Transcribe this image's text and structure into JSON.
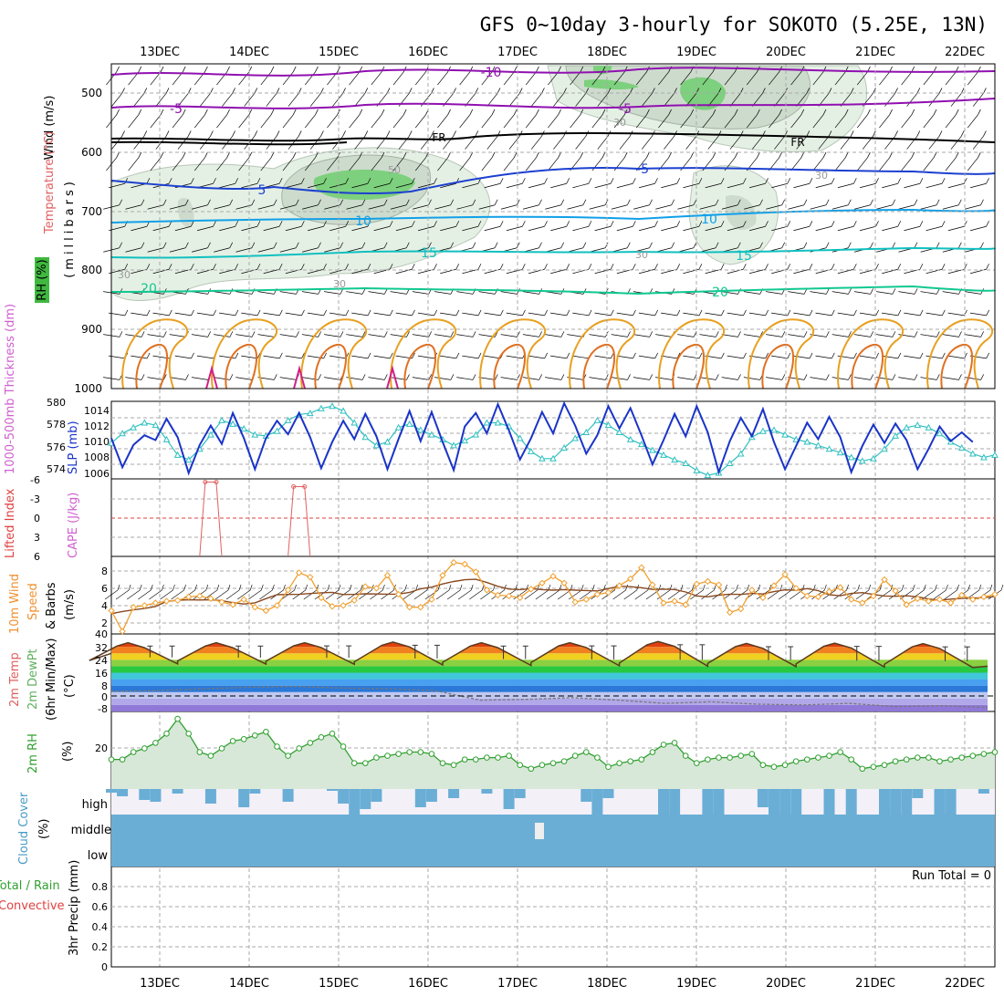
{
  "title": "GFS 0~10day 3-hourly for SOKOTO (5.25E, 13N)",
  "dates": [
    "13DEC",
    "14DEC",
    "15DEC",
    "16DEC",
    "17DEC",
    "18DEC",
    "19DEC",
    "20DEC",
    "21DEC",
    "22DEC"
  ],
  "run_total": "Run Total = 0",
  "panels": {
    "upper": {
      "ylabel_wind": "Wind (m/s)",
      "ylabel_temp": "Temperature (°C)",
      "ylabel_rh": "RH (%)",
      "ylabel_mb": "(millibars)",
      "yticks": [
        "500",
        "600",
        "700",
        "800",
        "900",
        "1000"
      ]
    },
    "sfc": {
      "ylabel_thick": "1000-500mb Thickness (dm)",
      "ylabel_slp": "SLP (mb)",
      "yticks_left": [
        "580",
        "578",
        "576",
        "574"
      ],
      "yticks_right": [
        "1014",
        "1012",
        "1010",
        "1008",
        "1006"
      ]
    },
    "cape": {
      "ylabel_li": "Lifted Index",
      "ylabel_cape": "CAPE (J/kg)",
      "yticks": [
        "-6",
        "-3",
        "0",
        "3",
        "6"
      ]
    },
    "wind10": {
      "ylabel_a": "10m Wind",
      "ylabel_b": "Speed",
      "ylabel_c": "& Barbs",
      "ylabel_d": "(m/s)",
      "yticks": [
        "8",
        "6",
        "4",
        "2"
      ]
    },
    "temp": {
      "ylabel_a": "2m Temp",
      "ylabel_b": "2m DewPt",
      "ylabel_c": "(6hr Min/Max)",
      "ylabel_d": "(°C)",
      "yticks": [
        "40",
        "32",
        "24",
        "16",
        "8",
        "0",
        "-8"
      ]
    },
    "rh": {
      "ylabel_a": "2m RH",
      "ylabel_b": "(%)",
      "yticks": [
        "20"
      ]
    },
    "cloud": {
      "ylabel_a": "Cloud Cover",
      "ylabel_b": "(%)",
      "levels": [
        "high",
        "middle",
        "low"
      ]
    },
    "precip": {
      "ylabel_a": "Total / Rain",
      "ylabel_b": "Convective",
      "ylabel_c": "3hr Precip (mm)",
      "yticks": [
        "0.8",
        "0.6",
        "0.4",
        "0.2",
        "0"
      ]
    }
  },
  "contour_labels": {
    "temp": [
      "-10",
      "-5",
      "-5",
      "FR",
      "FR",
      "-5",
      "5",
      "-5",
      "10",
      "10",
      "15",
      "15",
      "20",
      "20"
    ],
    "rh": [
      "30",
      "50",
      "30",
      "30",
      "30",
      "30"
    ]
  },
  "colors": {
    "temp_minus10": "#9010b0",
    "temp_minus5": "#9010b0",
    "freezing": "#000000",
    "temp_5": "#1c40d0",
    "temp_10": "#10a0e8",
    "temp_15": "#10c0c0",
    "temp_20": "#10c890",
    "low_orange": "#e8a020",
    "rh_dark": "#c0d0c0",
    "rh_green": "#60c860",
    "slp": "#1a34c8",
    "thickness": "#30c0c0",
    "wind_speed": "#f0a030",
    "rh2m": "#30a030",
    "cloud": "#6aaed6",
    "cloud_bg": "#f4f0f8"
  },
  "chart_data": {
    "type": "meteogram",
    "x_unit": "3-hourly steps from 12DEC 12Z",
    "x_range": [
      0,
      80
    ],
    "slp": {
      "name": "SLP (mb)",
      "ylim": [
        1006,
        1014
      ],
      "values": [
        1010.2,
        1007.2,
        1009.5,
        1010.5,
        1010.0,
        1012.2,
        1010.3,
        1006.6,
        1009.5,
        1011.5,
        1009.6,
        1012.8,
        1010.2,
        1007.0,
        1010.2,
        1012.0,
        1010.6,
        1012.8,
        1010.3,
        1007.1,
        1009.8,
        1012.0,
        1010.1,
        1012.7,
        1010.4,
        1007.0,
        1010.1,
        1013.0,
        1009.9,
        1012.9,
        1009.8,
        1006.9,
        1011.4,
        1012.8,
        1010.7,
        1013.7,
        1011.0,
        1008.0,
        1010.2,
        1012.9,
        1010.7,
        1013.8,
        1011.5,
        1008.6,
        1010.5,
        1013.5,
        1011.2,
        1013.3,
        1010.5,
        1007.5,
        1010.0,
        1012.7,
        1010.4,
        1013.5,
        1010.8,
        1006.7,
        1009.9,
        1012.3,
        1010.4,
        1013.2,
        1009.8,
        1007.0,
        1009.4,
        1011.8,
        1010.1,
        1012.4,
        1010.3,
        1006.7,
        1009.4,
        1011.6,
        1009.7,
        1011.7,
        1010.0,
        1007.0,
        1009.1,
        1011.4,
        1009.9,
        1010.8,
        1009.8
      ]
    },
    "thickness": {
      "name": "1000-500mb Thickness (dm)",
      "ylim": [
        573.5,
        580
      ],
      "values": [
        576.5,
        577.3,
        577.8,
        578.2,
        578.0,
        576.8,
        575.5,
        575.1,
        576.0,
        577.2,
        578.4,
        578.1,
        577.7,
        577.2,
        577.1,
        577.5,
        578.4,
        578.9,
        579.0,
        579.4,
        579.6,
        579.2,
        578.2,
        577.0,
        576.3,
        576.6,
        577.8,
        578.1,
        577.6,
        577.2,
        576.8,
        576.3,
        576.7,
        577.2,
        578.2,
        578.2,
        577.9,
        576.9,
        575.8,
        575.2,
        575.2,
        576.1,
        576.9,
        577.4,
        578.4,
        578.0,
        577.4,
        576.8,
        576.4,
        575.9,
        575.5,
        575.1,
        574.8,
        574.2,
        573.8,
        574.0,
        574.8,
        575.6,
        577.0,
        577.5,
        577.6,
        577.2,
        576.8,
        576.6,
        576.3,
        576.0,
        575.7,
        575.3,
        575.0,
        575.2,
        576.0,
        577.1,
        577.8,
        578.0,
        577.8,
        577.3,
        576.6,
        576.1,
        575.6,
        575.3,
        575.5
      ]
    },
    "wind10m_speed": {
      "name": "10m Wind Speed (m/s)",
      "ylim": [
        0.5,
        9.5
      ],
      "values": [
        3.2,
        0.8,
        3.6,
        3.8,
        4.1,
        4.3,
        4.4,
        4.8,
        4.9,
        4.6,
        4.2,
        3.9,
        4.5,
        3.6,
        3.2,
        3.8,
        5.6,
        7.6,
        7.1,
        4.7,
        3.7,
        3.8,
        4.4,
        6.0,
        5.8,
        7.3,
        5.1,
        3.6,
        3.6,
        4.5,
        7.3,
        8.8,
        8.6,
        7.7,
        5.6,
        5.0,
        4.9,
        4.7,
        5.7,
        6.4,
        7.2,
        6.4,
        4.2,
        4.5,
        5.1,
        5.3,
        6.1,
        6.9,
        8.2,
        6.2,
        4.1,
        4.3,
        3.9,
        6.3,
        6.6,
        6.2,
        3.0,
        3.4,
        5.6,
        4.7,
        6.1,
        7.4,
        5.8,
        4.9,
        4.8,
        5.4,
        5.9,
        4.5,
        4.1,
        4.9,
        6.8,
        5.5,
        3.9,
        4.6,
        4.3,
        4.5,
        4.1,
        5.0,
        4.5,
        4.8,
        5.1
      ]
    },
    "temp2m": {
      "name": "2m Temp (°C)",
      "ylim": [
        -8,
        40
      ],
      "max": [
        34.5,
        34.5,
        34.6,
        35.0,
        34.5,
        34.6,
        35.3,
        34.1,
        34.3,
        34.0
      ],
      "min": [
        21.5,
        21.3,
        21.2,
        20.8,
        20.5,
        20.3,
        20.0,
        19.8,
        19.5,
        19.2
      ]
    },
    "dewpt2m": {
      "name": "2m DewPt (°C)",
      "values": [
        4.5,
        5.0,
        6.0,
        7.0,
        7.5,
        6.5,
        6.0,
        5.0,
        -1.0,
        -0.5,
        0.5,
        -1.0,
        -3.0,
        -2.0,
        -3.5,
        -4.0,
        -3.0,
        -5.0,
        -4.5,
        -5.5
      ]
    },
    "rh2m": {
      "name": "2m RH (%)",
      "ylim": [
        0,
        42
      ],
      "values": [
        16,
        16,
        20,
        22,
        25,
        30,
        38,
        30,
        20,
        18,
        22,
        26,
        27,
        29,
        31,
        23,
        18,
        22,
        25,
        28,
        30,
        23,
        14,
        14,
        17,
        18,
        19,
        20,
        20,
        19,
        14,
        13,
        16,
        16,
        17,
        17,
        18,
        13,
        11,
        13,
        14,
        15,
        18,
        20,
        17,
        12,
        14,
        15,
        16,
        20,
        24,
        25,
        18,
        14,
        16,
        17,
        17,
        18,
        19,
        13,
        12,
        13,
        15,
        16,
        17,
        18,
        20,
        16,
        11,
        12,
        13,
        15,
        16,
        17,
        17,
        15,
        16,
        17,
        18,
        19,
        20
      ]
    },
    "cape_markers": [
      {
        "x": 8.5,
        "value": 5.5
      },
      {
        "x": 9.5,
        "value": 5.5
      },
      {
        "x": 16.5,
        "value": 4.8
      },
      {
        "x": 17.5,
        "value": 4.8
      }
    ]
  }
}
